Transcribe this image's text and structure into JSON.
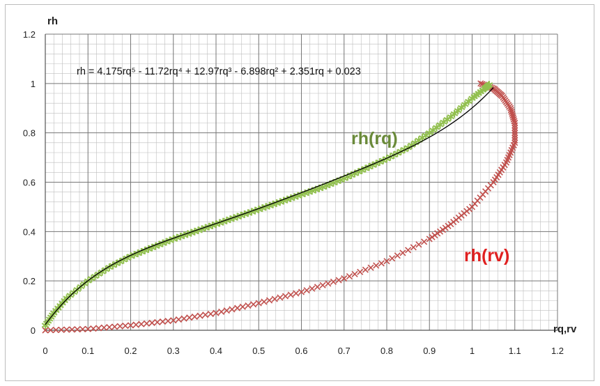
{
  "chart_data": {
    "type": "scatter",
    "xlabel": "rq,rv",
    "ylabel": "rh",
    "xlim": [
      0,
      1.2
    ],
    "ylim": [
      0,
      1.2
    ],
    "x_ticks": [
      "0",
      "0.1",
      "0.2",
      "0.3",
      "0.4",
      "0.5",
      "0.6",
      "0.7",
      "0.8",
      "0.9",
      "1",
      "1.1",
      "1.2"
    ],
    "y_ticks": [
      "0",
      "0.2",
      "0.4",
      "0.6",
      "0.8",
      "1",
      "1.2"
    ],
    "major_grid_x": 0.1,
    "major_grid_y": 0.2,
    "minor_grid_x": 0.02,
    "minor_grid_y": 0.04,
    "annotations": [
      {
        "text": "rh = 4.175rq⁵ - 11.72rq⁴ + 12.97rq³ - 6.898rq² + 2.351rq + 0.023"
      }
    ],
    "trendline": {
      "coefficients": [
        4.175,
        -11.72,
        12.97,
        -6.898,
        2.351,
        0.023
      ],
      "x_range": [
        0,
        1.05
      ],
      "color": "#000000"
    },
    "series": [
      {
        "name": "rh(rq)",
        "color": "#92c050",
        "label_color": "#6a8a3a",
        "marker": "star",
        "points": [
          [
            0.0,
            0.02
          ],
          [
            0.02,
            0.07
          ],
          [
            0.05,
            0.13
          ],
          [
            0.1,
            0.2
          ],
          [
            0.15,
            0.255
          ],
          [
            0.2,
            0.3
          ],
          [
            0.25,
            0.335
          ],
          [
            0.3,
            0.37
          ],
          [
            0.35,
            0.4
          ],
          [
            0.4,
            0.43
          ],
          [
            0.45,
            0.46
          ],
          [
            0.5,
            0.49
          ],
          [
            0.55,
            0.52
          ],
          [
            0.6,
            0.55
          ],
          [
            0.65,
            0.58
          ],
          [
            0.7,
            0.615
          ],
          [
            0.75,
            0.655
          ],
          [
            0.8,
            0.695
          ],
          [
            0.85,
            0.74
          ],
          [
            0.9,
            0.8
          ],
          [
            0.95,
            0.865
          ],
          [
            1.0,
            0.94
          ],
          [
            1.03,
            0.98
          ],
          [
            1.04,
            0.995
          ],
          [
            1.0,
            1.0
          ],
          [
            1.05,
            0.97
          ]
        ]
      },
      {
        "name": "rh(rv)",
        "color": "#c0504d",
        "label_color": "#e02020",
        "marker": "x",
        "points": [
          [
            0.0,
            0.0
          ],
          [
            0.1,
            0.005
          ],
          [
            0.2,
            0.02
          ],
          [
            0.3,
            0.04
          ],
          [
            0.4,
            0.07
          ],
          [
            0.5,
            0.11
          ],
          [
            0.6,
            0.155
          ],
          [
            0.7,
            0.21
          ],
          [
            0.8,
            0.28
          ],
          [
            0.9,
            0.37
          ],
          [
            0.95,
            0.43
          ],
          [
            1.0,
            0.5
          ],
          [
            1.05,
            0.6
          ],
          [
            1.08,
            0.68
          ],
          [
            1.1,
            0.76
          ],
          [
            1.1,
            0.84
          ],
          [
            1.09,
            0.9
          ],
          [
            1.07,
            0.95
          ],
          [
            1.05,
            0.98
          ],
          [
            1.02,
            1.0
          ]
        ]
      }
    ]
  }
}
